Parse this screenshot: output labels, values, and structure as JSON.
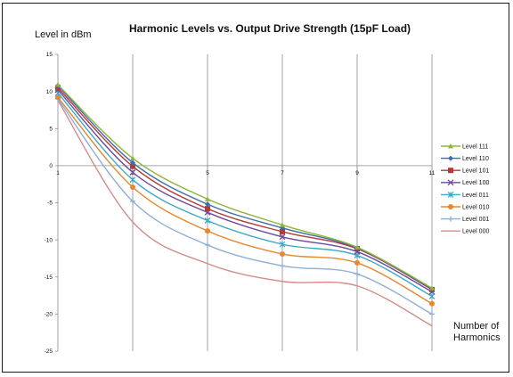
{
  "chart_data": {
    "type": "line",
    "title": "Harmonic Levels vs. Output Drive Strength (15pF Load)",
    "ylabel": "Level in dBm",
    "xlabel_lines": [
      "Number of",
      "Harmonics"
    ],
    "x": [
      1,
      3,
      5,
      7,
      9,
      11
    ],
    "x_ticks": [
      "1",
      "3",
      "5",
      "7",
      "9",
      "11"
    ],
    "xlim": [
      1,
      11
    ],
    "ylim": [
      -25,
      15
    ],
    "y_ticks": [
      15,
      10,
      5,
      0,
      -5,
      -10,
      -15,
      -20,
      -25
    ],
    "grid": "vertical",
    "legend": "right",
    "series": [
      {
        "name": "Level 111",
        "color": "#8db53c",
        "marker": "triangle",
        "values": [
          10.9,
          1.0,
          -4.5,
          -8.0,
          -11.0,
          -16.5
        ]
      },
      {
        "name": "Level 110",
        "color": "#3d6ea8",
        "marker": "diamond",
        "values": [
          10.8,
          0.4,
          -5.2,
          -8.4,
          -11.1,
          -16.6
        ]
      },
      {
        "name": "Level 101",
        "color": "#b13a3a",
        "marker": "square",
        "values": [
          10.5,
          -0.1,
          -5.8,
          -8.9,
          -11.2,
          -16.7
        ]
      },
      {
        "name": "Level 100",
        "color": "#6e4a9a",
        "marker": "x",
        "values": [
          10.2,
          -0.9,
          -6.3,
          -9.6,
          -11.6,
          -17.0
        ]
      },
      {
        "name": "Level 011",
        "color": "#3fa8c7",
        "marker": "star",
        "values": [
          9.8,
          -1.9,
          -7.4,
          -10.6,
          -12.1,
          -17.6
        ]
      },
      {
        "name": "Level 010",
        "color": "#e8872e",
        "marker": "circle",
        "values": [
          9.2,
          -2.9,
          -8.8,
          -11.9,
          -13.1,
          -18.6
        ]
      },
      {
        "name": "Level 001",
        "color": "#90aed6",
        "marker": "plus",
        "values": [
          9.0,
          -4.8,
          -10.7,
          -13.5,
          -14.6,
          -20.0
        ]
      },
      {
        "name": "Level 000",
        "color": "#d48c8c",
        "marker": "none",
        "values": [
          8.8,
          -7.6,
          -13.2,
          -15.6,
          -16.2,
          -21.6
        ]
      }
    ]
  }
}
